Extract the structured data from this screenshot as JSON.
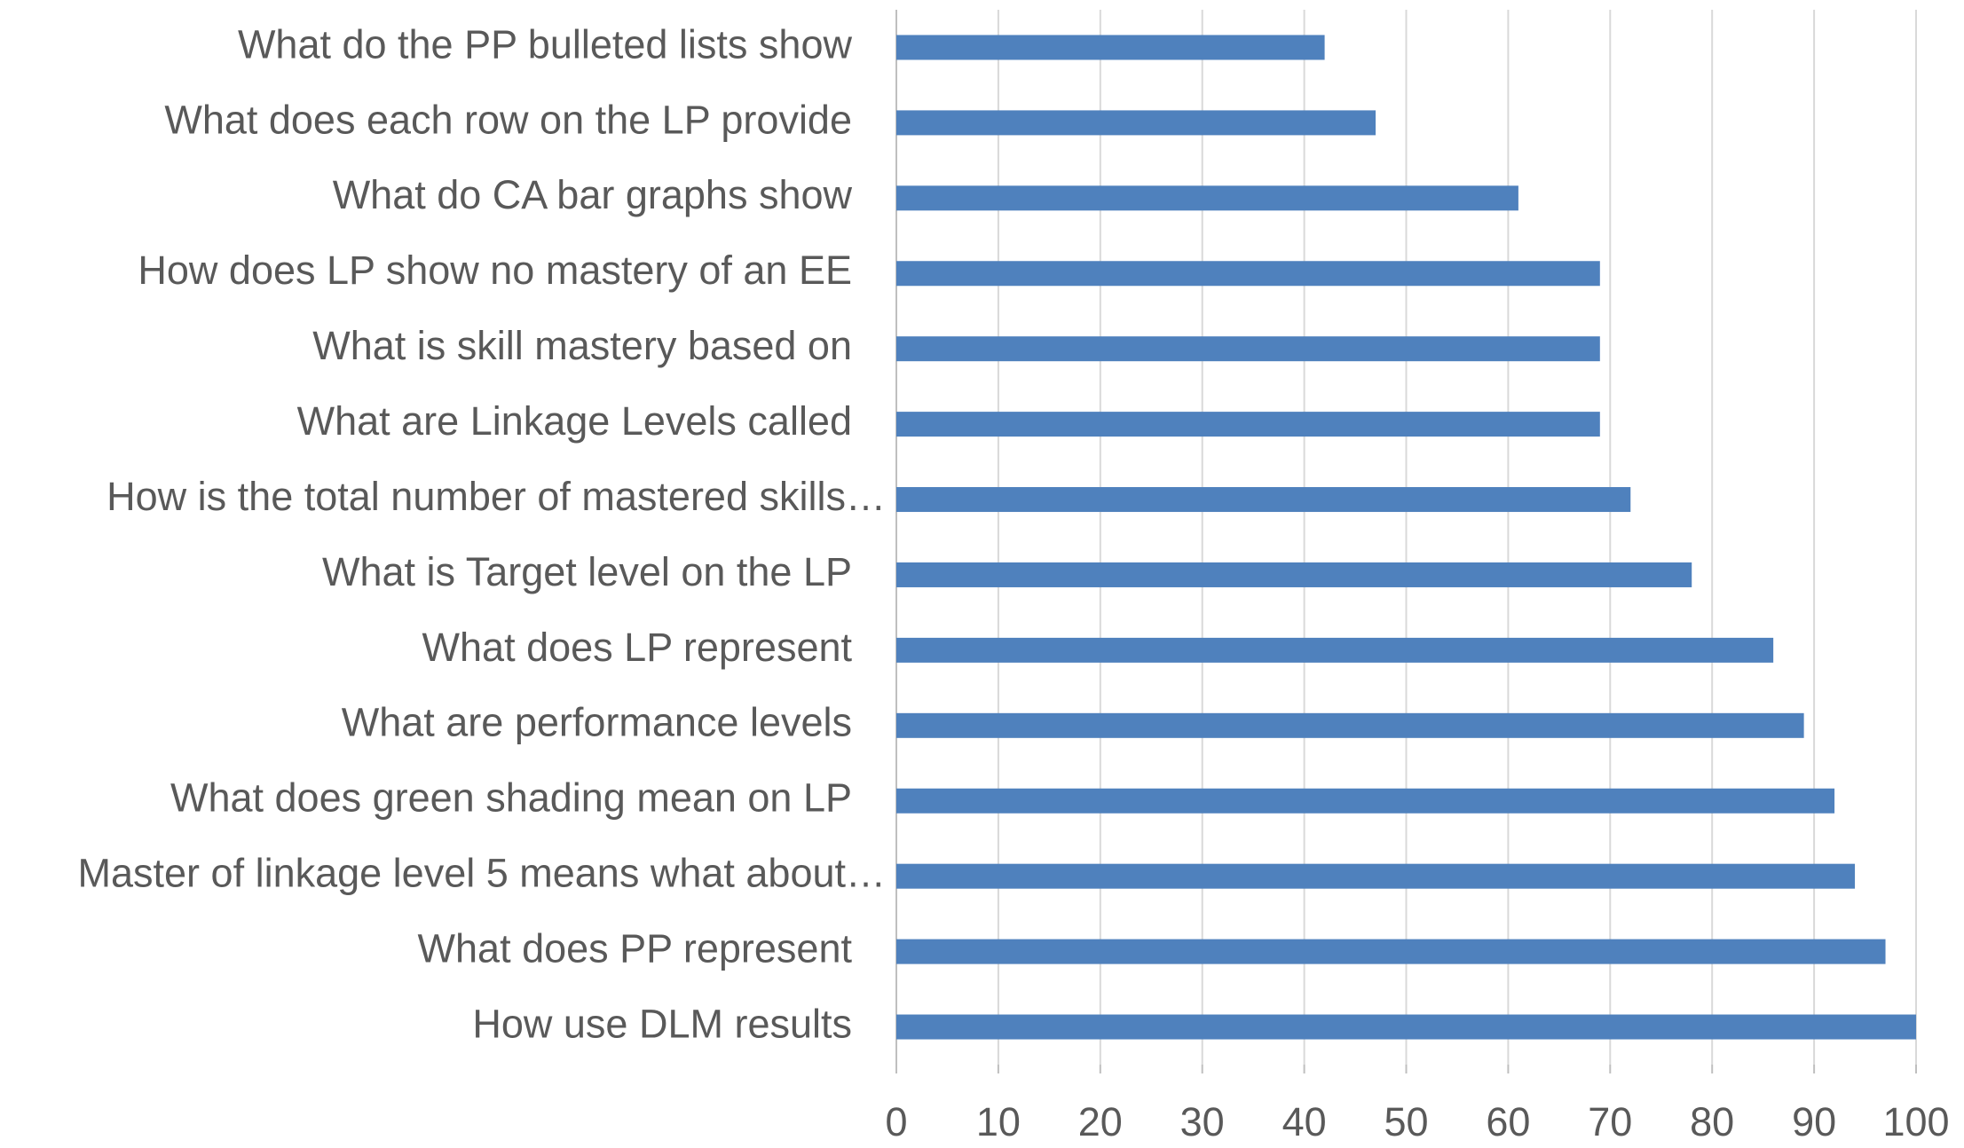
{
  "chart_data": {
    "type": "bar",
    "orientation": "horizontal",
    "categories": [
      "What do the PP bulleted lists show",
      "What does each row on the LP provide",
      "What do CA bar graphs show",
      "How does LP show no mastery of an EE",
      "What is skill mastery based on",
      "What are Linkage Levels called",
      "How is the total number of mastered skills…",
      "What is Target level on the LP",
      "What does LP represent",
      "What are performance levels",
      "What does green shading mean on LP",
      "Master of linkage level 5 means what about…",
      "What does PP represent",
      "How use DLM results"
    ],
    "values": [
      42,
      47,
      61,
      69,
      69,
      69,
      72,
      78,
      86,
      89,
      92,
      94,
      97,
      100
    ],
    "color": "#4f81bd",
    "xlim": [
      0,
      100
    ],
    "xticks": [
      0,
      10,
      20,
      30,
      40,
      50,
      60,
      70,
      80,
      90,
      100
    ],
    "grid": true
  }
}
